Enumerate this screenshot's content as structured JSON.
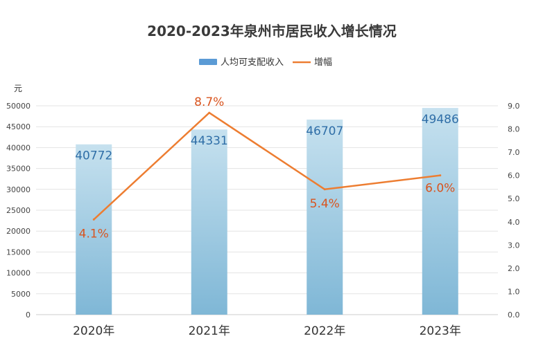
{
  "colors": {
    "bar_top": "#c6e1ef",
    "bar_bottom": "#7fb7d6",
    "bar_label": "#2f6ea7",
    "line": "#ed7d31",
    "line_label": "#d9541e",
    "legend_bar": "#5b9bd5",
    "grid": "#e3e3e3",
    "axis": "#cccccc"
  },
  "chart_data": {
    "type": "bar",
    "title": "2020-2023年泉州市居民收入增长情况",
    "categories": [
      "2020年",
      "2021年",
      "2022年",
      "2023年"
    ],
    "left_unit": "元",
    "ylim": [
      0,
      50000
    ],
    "yticks": [
      0,
      5000,
      10000,
      15000,
      20000,
      25000,
      30000,
      35000,
      40000,
      45000,
      50000
    ],
    "y2lim": [
      0.0,
      9.0
    ],
    "y2ticks": [
      "0.0",
      "1.0",
      "2.0",
      "3.0",
      "4.0",
      "5.0",
      "6.0",
      "7.0",
      "8.0",
      "9.0"
    ],
    "legend_position": "top-center",
    "grid": true,
    "series": [
      {
        "name": "人均可支配收入",
        "type": "bar",
        "axis": "left",
        "values": [
          40772,
          44331,
          46707,
          49486
        ],
        "labels": [
          "40772",
          "44331",
          "46707",
          "49486"
        ]
      },
      {
        "name": "增幅",
        "type": "line",
        "axis": "right",
        "values": [
          4.1,
          8.7,
          5.4,
          6.0
        ],
        "labels": [
          "4.1%",
          "8.7%",
          "5.4%",
          "6.0%"
        ]
      }
    ]
  }
}
